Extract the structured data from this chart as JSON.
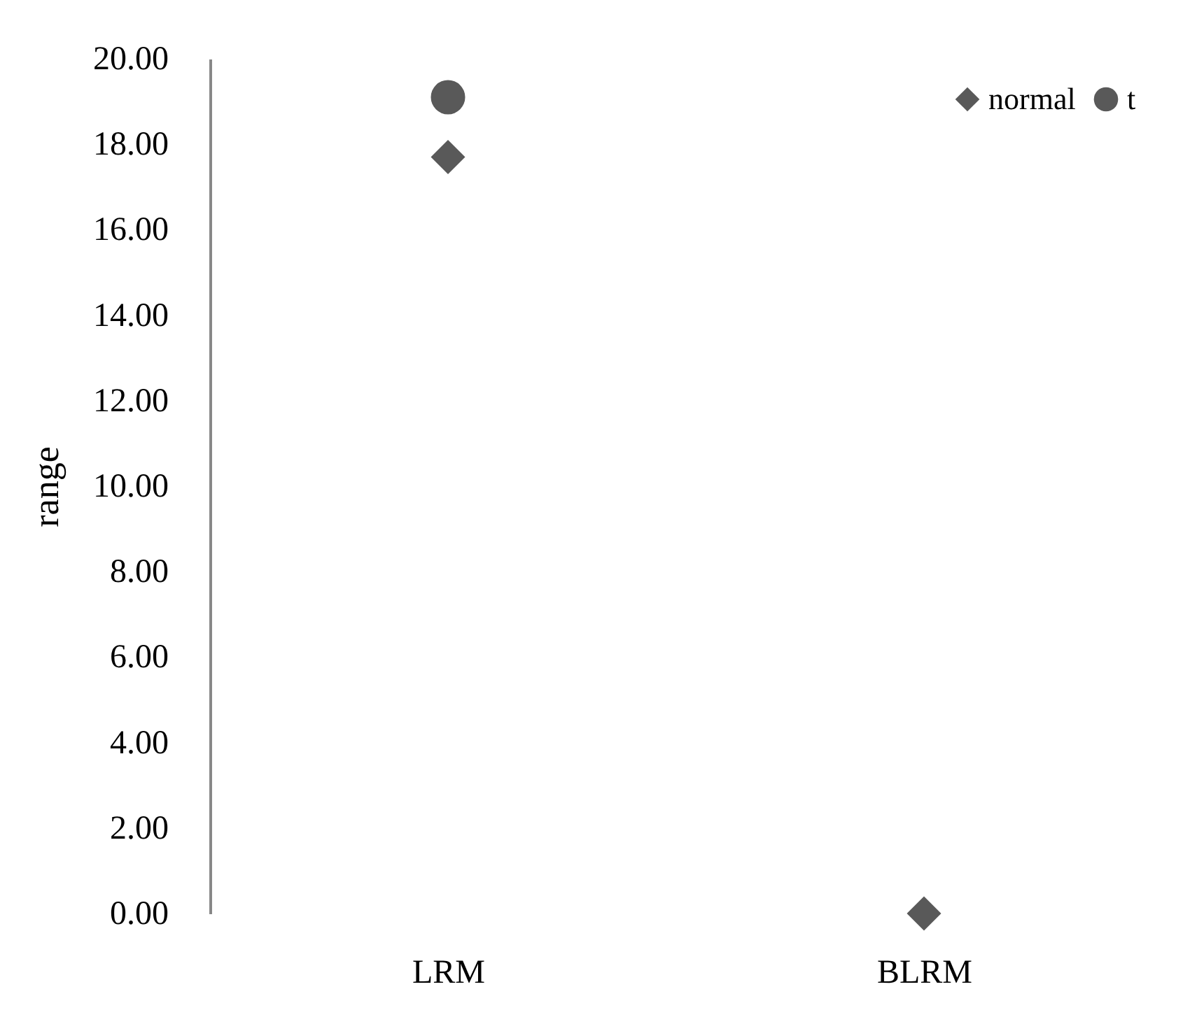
{
  "chart_data": {
    "type": "scatter",
    "ylabel": "range",
    "categories": [
      "LRM",
      "BLRM"
    ],
    "series": [
      {
        "name": "normal",
        "color": "#595959",
        "marker": "diamond",
        "values": [
          17.7,
          0.0
        ]
      },
      {
        "name": "t",
        "color": "#595959",
        "marker": "circle",
        "values": [
          19.1,
          null
        ]
      }
    ],
    "ylim": [
      0,
      20
    ],
    "yticks": [
      {
        "value": 0,
        "label": "0.00"
      },
      {
        "value": 2,
        "label": "2.00"
      },
      {
        "value": 4,
        "label": "4.00"
      },
      {
        "value": 6,
        "label": "6.00"
      },
      {
        "value": 8,
        "label": "8.00"
      },
      {
        "value": 10,
        "label": "10.00"
      },
      {
        "value": 12,
        "label": "12.00"
      },
      {
        "value": 14,
        "label": "14.00"
      },
      {
        "value": 16,
        "label": "16.00"
      },
      {
        "value": 18,
        "label": "18.00"
      },
      {
        "value": 20,
        "label": "20.00"
      }
    ],
    "grid": false,
    "legend": "top right"
  }
}
